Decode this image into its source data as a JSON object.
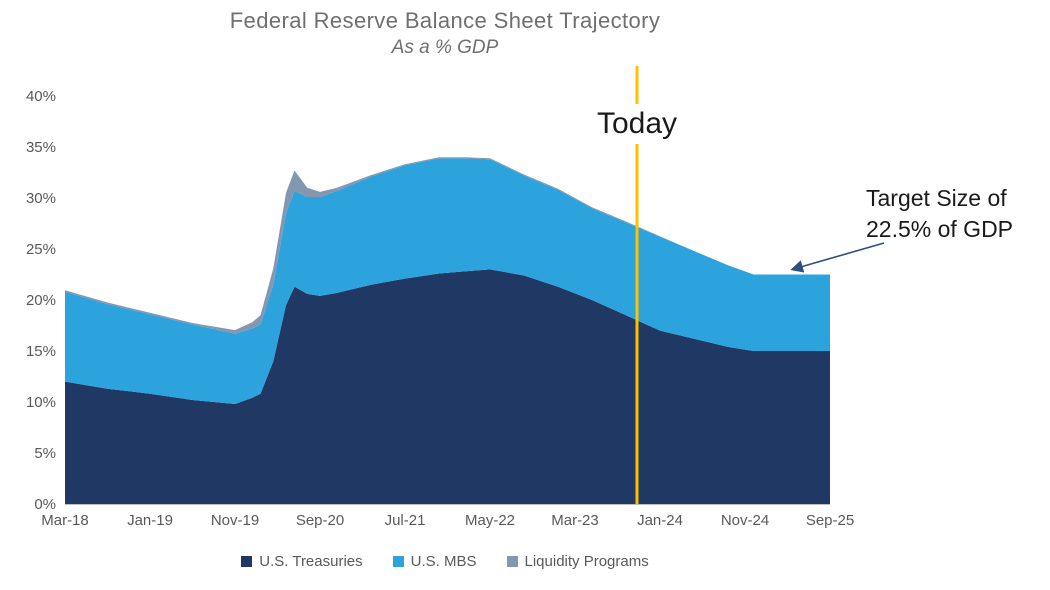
{
  "title": "Federal Reserve Balance Sheet Trajectory",
  "subtitle": "As a % GDP",
  "today_label": "Today",
  "annotation": {
    "line1": "Target Size of",
    "line2": "22.5% of GDP"
  },
  "legend": [
    {
      "label": "U.S. Treasuries",
      "color": "#1F3864"
    },
    {
      "label": "U.S. MBS",
      "color": "#2CA3DC"
    },
    {
      "label": "Liquidity Programs",
      "color": "#8497B0"
    }
  ],
  "colors": {
    "treasuries": "#1F3864",
    "mbs": "#2CA3DC",
    "liquidity": "#8497B0",
    "today_line": "#FFC000",
    "arrow": "#2F4F7F",
    "axis_text": "#595959",
    "axis_line": "#BFBFBF",
    "title_text": "#6F6F6F",
    "annotation_text": "#1A1A1A"
  },
  "chart_data": {
    "type": "area",
    "stacked": true,
    "title": "Federal Reserve Balance Sheet Trajectory",
    "subtitle": "As a % GDP",
    "x_unit": "months since Mar-2018",
    "xlim": [
      0,
      90
    ],
    "ylim": [
      0,
      40
    ],
    "grid": false,
    "legend_position": "bottom",
    "y_ticks": [
      0,
      5,
      10,
      15,
      20,
      25,
      30,
      35,
      40
    ],
    "y_tick_suffix": "%",
    "x_ticks": [
      {
        "m": 0,
        "label": "Mar-18"
      },
      {
        "m": 10,
        "label": "Jan-19"
      },
      {
        "m": 20,
        "label": "Nov-19"
      },
      {
        "m": 30,
        "label": "Sep-20"
      },
      {
        "m": 40,
        "label": "Jul-21"
      },
      {
        "m": 50,
        "label": "May-22"
      },
      {
        "m": 60,
        "label": "Mar-23"
      },
      {
        "m": 70,
        "label": "Jan-24"
      },
      {
        "m": 80,
        "label": "Nov-24"
      },
      {
        "m": 90,
        "label": "Sep-25"
      }
    ],
    "x": [
      0,
      5,
      10,
      15,
      20,
      22,
      23,
      24.5,
      26,
      27,
      28.5,
      30,
      32,
      36,
      40,
      44,
      47,
      50,
      54,
      58,
      62,
      66,
      70,
      74,
      78,
      81,
      85,
      90
    ],
    "series": [
      {
        "id": "us-treasuries",
        "name": "U.S. Treasuries",
        "color": "#1F3864",
        "values": [
          12.0,
          11.3,
          10.8,
          10.2,
          9.8,
          10.4,
          10.8,
          14.0,
          19.5,
          21.3,
          20.6,
          20.4,
          20.7,
          21.5,
          22.1,
          22.6,
          22.8,
          23.0,
          22.4,
          21.3,
          20.0,
          18.5,
          17.0,
          16.2,
          15.4,
          15.0,
          15.0,
          15.0
        ]
      },
      {
        "id": "us-mbs",
        "name": "U.S. MBS",
        "color": "#2CA3DC",
        "values": [
          8.8,
          8.3,
          7.8,
          7.4,
          6.9,
          6.8,
          6.8,
          7.5,
          9.0,
          9.4,
          9.5,
          9.7,
          10.0,
          10.6,
          11.1,
          11.3,
          11.1,
          10.8,
          9.8,
          9.5,
          9.0,
          9.1,
          9.2,
          8.6,
          8.0,
          7.5,
          7.5,
          7.5
        ]
      },
      {
        "id": "liquidity-programs",
        "name": "Liquidity Programs",
        "color": "#8497B0",
        "values": [
          0.15,
          0.15,
          0.15,
          0.15,
          0.35,
          0.6,
          0.9,
          1.6,
          2.0,
          2.0,
          0.9,
          0.5,
          0.3,
          0.15,
          0.1,
          0.1,
          0.1,
          0.1,
          0.1,
          0.1,
          0.1,
          0.1,
          0.05,
          0,
          0,
          0,
          0,
          0
        ]
      }
    ],
    "today_x": 67.3,
    "target_value": 22.5
  }
}
